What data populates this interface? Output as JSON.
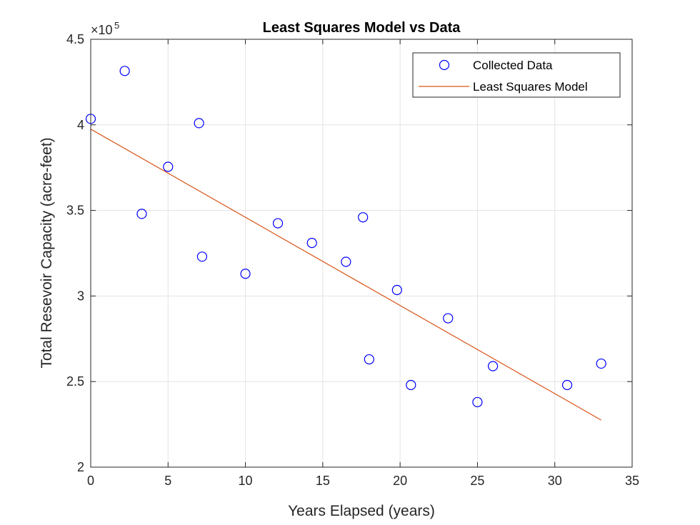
{
  "chart_data": {
    "type": "scatter",
    "title": "Least Squares Model vs Data",
    "xlabel": "Years Elapsed (years)",
    "ylabel": "Total Resevoir Capacity (acre-feet)",
    "xlim": [
      0,
      35
    ],
    "ylim": [
      200000,
      450000
    ],
    "x_ticks": [
      "0",
      "5",
      "10",
      "15",
      "20",
      "25",
      "30",
      "35"
    ],
    "y_ticks": [
      "2",
      "2.5",
      "3",
      "3.5",
      "4",
      "4.5"
    ],
    "y_multiplier_base": "×10",
    "y_multiplier_exp": "5",
    "grid": true,
    "legend_position": "top-right",
    "series": [
      {
        "name": "Collected Data",
        "type": "scatter",
        "marker": "circle",
        "color": "#0000ff",
        "points": [
          {
            "x": 0,
            "y": 403500
          },
          {
            "x": 2.2,
            "y": 431500
          },
          {
            "x": 3.3,
            "y": 348000
          },
          {
            "x": 5,
            "y": 375500
          },
          {
            "x": 7,
            "y": 401000
          },
          {
            "x": 7.2,
            "y": 323000
          },
          {
            "x": 10,
            "y": 313000
          },
          {
            "x": 12.1,
            "y": 342500
          },
          {
            "x": 14.3,
            "y": 331000
          },
          {
            "x": 16.5,
            "y": 320000
          },
          {
            "x": 17.6,
            "y": 346000
          },
          {
            "x": 18,
            "y": 263000
          },
          {
            "x": 19.8,
            "y": 303500
          },
          {
            "x": 20.7,
            "y": 248000
          },
          {
            "x": 23.1,
            "y": 287000
          },
          {
            "x": 25,
            "y": 238000
          },
          {
            "x": 26,
            "y": 259000
          },
          {
            "x": 30.8,
            "y": 248000
          },
          {
            "x": 33,
            "y": 260500
          }
        ]
      },
      {
        "name": "Least Squares Model",
        "type": "line",
        "color": "#d95319",
        "points": [
          {
            "x": 0,
            "y": 397500
          },
          {
            "x": 33,
            "y": 227500
          }
        ]
      }
    ]
  }
}
